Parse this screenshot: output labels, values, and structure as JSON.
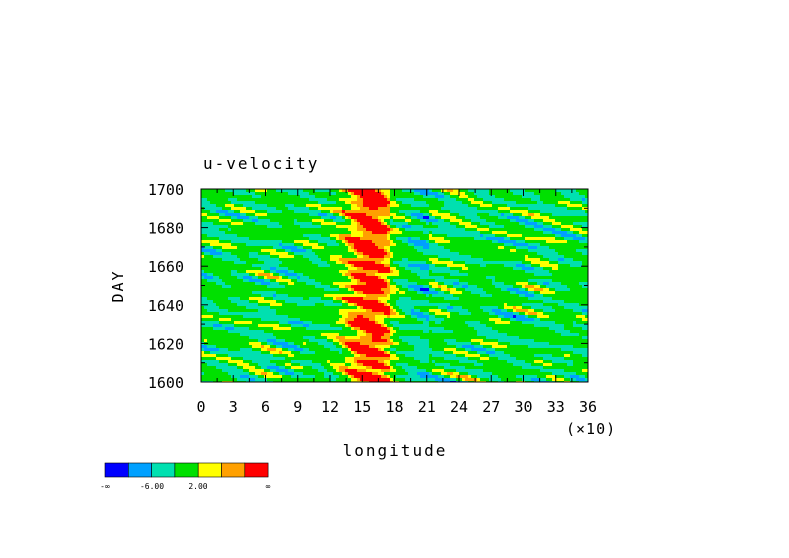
{
  "chart_data": {
    "type": "heatmap",
    "title": "u-velocity",
    "xlabel": "longitude",
    "ylabel": "DAY",
    "x_multiplier_label": "(×10)",
    "x_ticks": [
      0,
      3,
      6,
      9,
      12,
      15,
      18,
      21,
      24,
      27,
      30,
      33,
      36
    ],
    "y_ticks": [
      1600,
      1620,
      1640,
      1660,
      1680,
      1700
    ],
    "xlim": [
      0,
      36
    ],
    "ylim": [
      1600,
      1700
    ],
    "grid": false,
    "colorbar": {
      "colors": [
        "#0000ff",
        "#00a0ff",
        "#00e0b0",
        "#00e000",
        "#ffff00",
        "#ffa000",
        "#ff0000"
      ],
      "labels": [
        "-∞",
        "-6.00",
        "2.00",
        "∞"
      ]
    },
    "field_description": "hovmoller plot; mostly green/cyan background with yellow-orange-red band centered near longitude 15-17 (x10)"
  }
}
